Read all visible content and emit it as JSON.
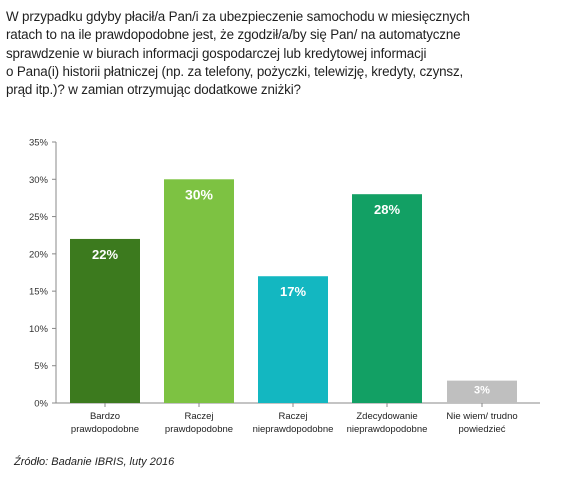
{
  "question_lines": [
    "W przypadku gdyby płacił/a Pan/i za ubezpieczenie samochodu w miesięcznych",
    "ratach to na ile prawdopodobne jest, że zgodził/a/by się Pan/ na automatyczne",
    "sprawdzenie w biurach informacji gospodarczej lub kredytowej informacji",
    "o Pana(i) historii płatniczej (np. za telefony, pożyczki, telewizję, kredyty, czynsz,",
    "prąd itp.)? w zamian otrzymując dodatkowe zniżki?"
  ],
  "source": "Źródło: Badanie IBRIS, luty 2016",
  "chart_data": {
    "type": "bar",
    "categories": [
      [
        "Bardzo",
        "prawdopodobne"
      ],
      [
        "Raczej",
        "prawdopodobne"
      ],
      [
        "Raczej",
        "nieprawdopodobne"
      ],
      [
        "Zdecydowanie",
        "nieprawdopodobne"
      ],
      [
        "Nie wiem/ trudno",
        "powiedzieć"
      ]
    ],
    "values": [
      22,
      30,
      17,
      28,
      3
    ],
    "data_labels": [
      "22%",
      "30%",
      "17%",
      "28%",
      "3%"
    ],
    "colors": [
      "#3c7a1e",
      "#7dc242",
      "#13b7c1",
      "#12a064",
      "#bfbfbf"
    ],
    "ylim": [
      0,
      35
    ],
    "yticks": [
      "0%",
      "5%",
      "10%",
      "15%",
      "20%",
      "25%",
      "30%",
      "35%"
    ],
    "grid": false
  }
}
